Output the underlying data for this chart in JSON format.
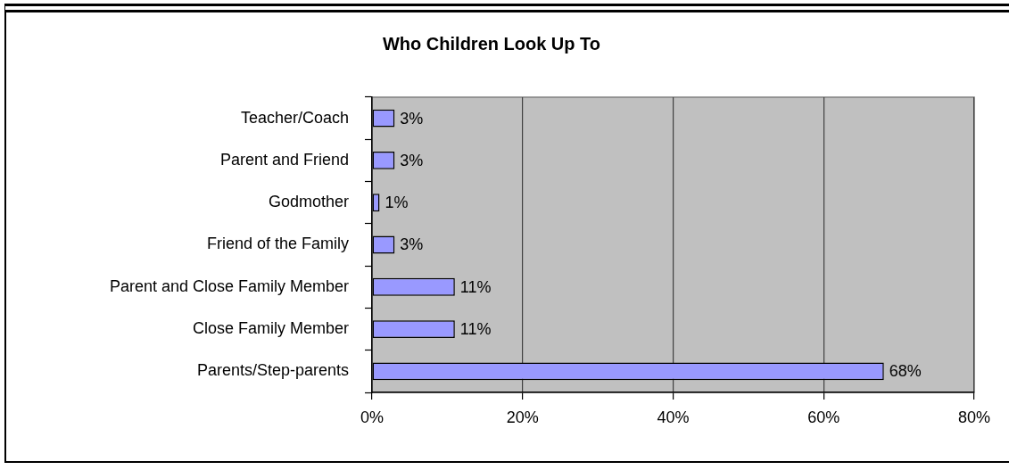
{
  "chart_data": {
    "type": "bar",
    "orientation": "horizontal",
    "title": "Who Children Look Up To",
    "categories": [
      "Teacher/Coach",
      "Parent and Friend",
      "Godmother",
      "Friend of the Family",
      "Parent and Close Family Member",
      "Close Family Member",
      "Parents/Step-parents"
    ],
    "values": [
      3,
      3,
      1,
      3,
      11,
      11,
      68
    ],
    "value_labels": [
      "3%",
      "3%",
      "1%",
      "3%",
      "11%",
      "11%",
      "68%"
    ],
    "color": "#9999ff",
    "xlim": [
      0,
      80
    ],
    "xticks": [
      {
        "value": 0,
        "label": "0%"
      },
      {
        "value": 20,
        "label": "20%"
      },
      {
        "value": 40,
        "label": "40%"
      },
      {
        "value": 60,
        "label": "60%"
      },
      {
        "value": 80,
        "label": "80%"
      }
    ],
    "grid": "x"
  }
}
